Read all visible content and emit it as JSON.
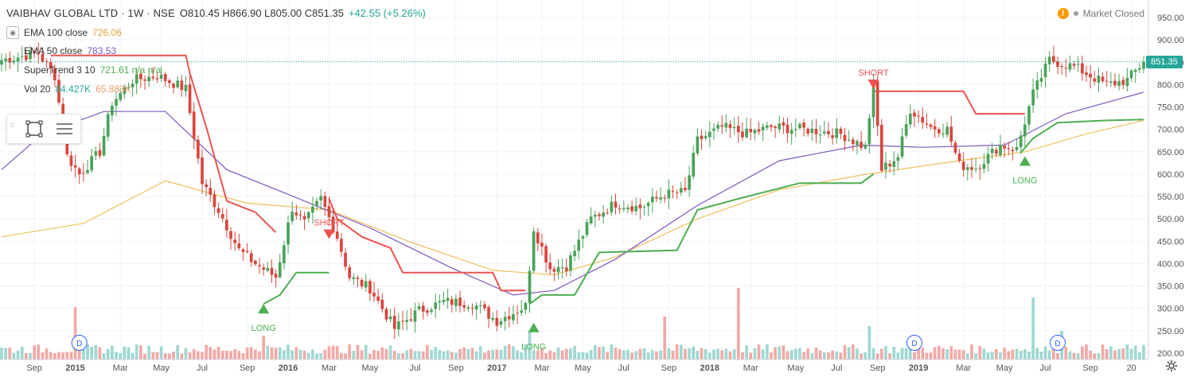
{
  "header": {
    "symbol_line": "VAIBHAV GLOBAL LTD · 1W · NSE",
    "ohlc_line": "O810.45 H866.90 L805.00 C851.35",
    "change": "+42.55 (+5.26%)"
  },
  "legends": [
    {
      "label": "EMA 100 close",
      "value": "726.06",
      "color": "#f0b14a"
    },
    {
      "label": "EMA 50 close",
      "value": "783.53",
      "color": "#7e57c2"
    },
    {
      "label": "SuperTrend 3 10",
      "value": "721.61 n/a n/a",
      "color": "#4caf50"
    },
    {
      "label": "Vol 20",
      "value": "84.427K",
      "value2": "65.883K",
      "color": "#26a69a",
      "color2": "#f39c6b"
    }
  ],
  "status": {
    "warning_icon": "!",
    "text": "Market Closed"
  },
  "last_price": "851.35",
  "colors": {
    "up": "#26a69a",
    "down": "#ef5350",
    "candle_up": "#4aa35a",
    "candle_down": "#d9463e",
    "st_up": "#4caf50",
    "st_down": "#ef5350"
  },
  "chart_data": {
    "type": "candlestick",
    "y_axis": {
      "ticks": [
        200,
        250,
        300,
        350,
        400,
        450,
        500,
        550,
        600,
        650,
        700,
        750,
        800,
        850,
        900,
        950
      ],
      "range": [
        195,
        965
      ]
    },
    "x_axis": {
      "labels": [
        "Sep",
        "2015",
        "Mar",
        "May",
        "Jul",
        "Sep",
        "2016",
        "Mar",
        "May",
        "Jul",
        "Sep",
        "2017",
        "Mar",
        "May",
        "Jul",
        "Sep",
        "2018",
        "Mar",
        "May",
        "Jul",
        "Sep",
        "2019",
        "Mar",
        "May",
        "Jul",
        "Sep",
        "20"
      ]
    },
    "price_anchors": [
      {
        "i": 0,
        "p": 855
      },
      {
        "i": 9,
        "p": 870
      },
      {
        "i": 13,
        "p": 820
      },
      {
        "i": 16,
        "p": 640
      },
      {
        "i": 19,
        "p": 600
      },
      {
        "i": 24,
        "p": 650
      },
      {
        "i": 27,
        "p": 760
      },
      {
        "i": 32,
        "p": 810
      },
      {
        "i": 38,
        "p": 820
      },
      {
        "i": 45,
        "p": 790
      },
      {
        "i": 49,
        "p": 580
      },
      {
        "i": 53,
        "p": 520
      },
      {
        "i": 58,
        "p": 430
      },
      {
        "i": 62,
        "p": 400
      },
      {
        "i": 67,
        "p": 370
      },
      {
        "i": 71,
        "p": 525
      },
      {
        "i": 74,
        "p": 490
      },
      {
        "i": 78,
        "p": 545
      },
      {
        "i": 82,
        "p": 460
      },
      {
        "i": 85,
        "p": 370
      },
      {
        "i": 90,
        "p": 345
      },
      {
        "i": 96,
        "p": 255
      },
      {
        "i": 102,
        "p": 295
      },
      {
        "i": 108,
        "p": 315
      },
      {
        "i": 115,
        "p": 312
      },
      {
        "i": 121,
        "p": 272
      },
      {
        "i": 128,
        "p": 305
      },
      {
        "i": 130,
        "p": 480
      },
      {
        "i": 134,
        "p": 390
      },
      {
        "i": 138,
        "p": 395
      },
      {
        "i": 144,
        "p": 500
      },
      {
        "i": 150,
        "p": 535
      },
      {
        "i": 156,
        "p": 525
      },
      {
        "i": 162,
        "p": 555
      },
      {
        "i": 167,
        "p": 560
      },
      {
        "i": 170,
        "p": 675
      },
      {
        "i": 176,
        "p": 705
      },
      {
        "i": 182,
        "p": 690
      },
      {
        "i": 188,
        "p": 705
      },
      {
        "i": 196,
        "p": 700
      },
      {
        "i": 205,
        "p": 690
      },
      {
        "i": 211,
        "p": 660
      },
      {
        "i": 213,
        "p": 800
      },
      {
        "i": 215,
        "p": 610
      },
      {
        "i": 219,
        "p": 640
      },
      {
        "i": 222,
        "p": 745
      },
      {
        "i": 227,
        "p": 705
      },
      {
        "i": 231,
        "p": 700
      },
      {
        "i": 234,
        "p": 620
      },
      {
        "i": 238,
        "p": 615
      },
      {
        "i": 244,
        "p": 665
      },
      {
        "i": 248,
        "p": 655
      },
      {
        "i": 252,
        "p": 780
      },
      {
        "i": 256,
        "p": 855
      },
      {
        "i": 262,
        "p": 840
      },
      {
        "i": 266,
        "p": 820
      },
      {
        "i": 270,
        "p": 800
      },
      {
        "i": 275,
        "p": 810
      },
      {
        "i": 279,
        "p": 851
      }
    ],
    "ema100": [
      [
        0,
        460
      ],
      [
        20,
        490
      ],
      [
        40,
        585
      ],
      [
        60,
        535
      ],
      [
        80,
        520
      ],
      [
        100,
        448
      ],
      [
        120,
        385
      ],
      [
        135,
        375
      ],
      [
        150,
        415
      ],
      [
        170,
        500
      ],
      [
        190,
        565
      ],
      [
        210,
        598
      ],
      [
        230,
        625
      ],
      [
        250,
        650
      ],
      [
        265,
        690
      ],
      [
        279,
        720
      ]
    ],
    "ema50": [
      [
        0,
        610
      ],
      [
        10,
        690
      ],
      [
        25,
        740
      ],
      [
        40,
        740
      ],
      [
        55,
        610
      ],
      [
        70,
        555
      ],
      [
        90,
        480
      ],
      [
        110,
        390
      ],
      [
        125,
        330
      ],
      [
        135,
        340
      ],
      [
        150,
        410
      ],
      [
        170,
        530
      ],
      [
        190,
        630
      ],
      [
        210,
        665
      ],
      [
        225,
        660
      ],
      [
        245,
        665
      ],
      [
        260,
        735
      ],
      [
        279,
        783
      ]
    ],
    "supertrend": [
      {
        "dir": "down",
        "pts": [
          [
            12,
            865
          ],
          [
            45,
            865
          ],
          [
            46,
            825
          ],
          [
            50,
            705
          ],
          [
            55,
            540
          ],
          [
            62,
            515
          ],
          [
            67,
            470
          ]
        ]
      },
      {
        "dir": "up",
        "pts": [
          [
            64,
            310
          ],
          [
            68,
            330
          ],
          [
            72,
            380
          ],
          [
            78,
            380
          ],
          [
            80,
            380
          ]
        ]
      },
      {
        "dir": "down",
        "pts": [
          [
            80,
            545
          ],
          [
            82,
            500
          ],
          [
            88,
            460
          ],
          [
            95,
            435
          ],
          [
            98,
            380
          ],
          [
            120,
            380
          ],
          [
            122,
            340
          ],
          [
            128,
            340
          ]
        ]
      },
      {
        "dir": "up",
        "pts": [
          [
            129,
            310
          ],
          [
            132,
            330
          ],
          [
            140,
            330
          ],
          [
            146,
            425
          ],
          [
            165,
            430
          ],
          [
            170,
            520
          ],
          [
            180,
            545
          ],
          [
            195,
            580
          ],
          [
            210,
            580
          ],
          [
            213,
            600
          ]
        ]
      },
      {
        "dir": "down",
        "pts": [
          [
            213,
            785
          ],
          [
            235,
            785
          ],
          [
            238,
            735
          ],
          [
            250,
            735
          ]
        ]
      },
      {
        "dir": "up",
        "pts": [
          [
            249,
            648
          ],
          [
            252,
            680
          ],
          [
            258,
            715
          ],
          [
            270,
            720
          ],
          [
            279,
            722
          ]
        ]
      }
    ],
    "signals": [
      {
        "type": "LONG",
        "i": 64,
        "price": 310
      },
      {
        "type": "SHORT",
        "i": 80,
        "price": 455
      },
      {
        "type": "LONG",
        "i": 130,
        "price": 268
      },
      {
        "type": "SHORT",
        "i": 213,
        "price": 790
      },
      {
        "type": "LONG",
        "i": 250,
        "price": 640
      }
    ],
    "dividend_markers": [
      {
        "i": 19,
        "label": "D"
      },
      {
        "i": 223,
        "label": "D"
      },
      {
        "i": 258,
        "label": "D"
      }
    ],
    "volume_spikes": [
      {
        "i": 18,
        "v": 0.55
      },
      {
        "i": 64,
        "v": 0.25
      },
      {
        "i": 129,
        "v": 0.3
      },
      {
        "i": 162,
        "v": 0.45
      },
      {
        "i": 180,
        "v": 0.75
      },
      {
        "i": 212,
        "v": 0.35
      },
      {
        "i": 252,
        "v": 0.65
      },
      {
        "i": 259,
        "v": 0.3
      }
    ]
  }
}
